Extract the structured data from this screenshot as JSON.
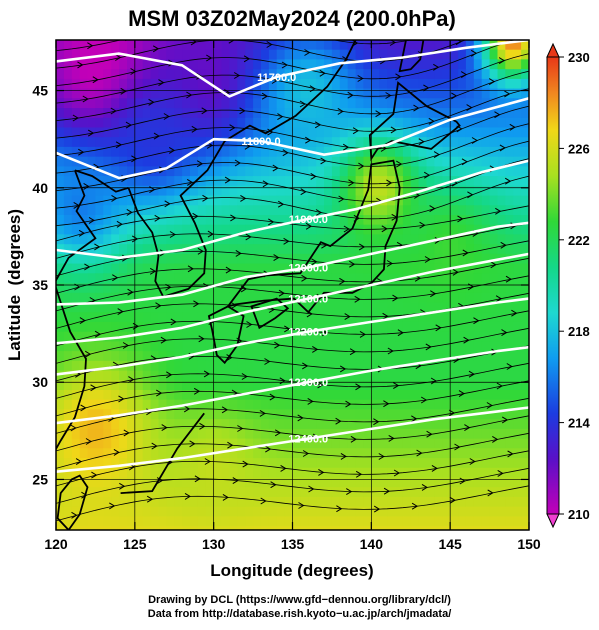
{
  "chart_data": {
    "type": "heatmap",
    "title": "MSM 03Z02May2024 (200.0hPa)",
    "xlabel": "Longitude (degrees)",
    "ylabel": "Latitude  (degrees)",
    "xlim": [
      120,
      150
    ],
    "ylim": [
      22.4,
      47.6
    ],
    "x_ticks": [
      "120",
      "125",
      "130",
      "135",
      "140",
      "145",
      "150"
    ],
    "y_ticks": [
      "25",
      "30",
      "35",
      "40",
      "45"
    ],
    "colorbar": {
      "min": 210,
      "max": 230,
      "tick_labels": [
        "230",
        "226",
        "222",
        "218",
        "214",
        "210"
      ]
    },
    "contours": [
      {
        "label": "11700.0",
        "points": [
          [
            120,
            46.5
          ],
          [
            124,
            46.9
          ],
          [
            128,
            46.3
          ],
          [
            131,
            44.7
          ],
          [
            134,
            45.7
          ],
          [
            138,
            46.4
          ],
          [
            142,
            46.7
          ],
          [
            146,
            47.2
          ],
          [
            150,
            47.6
          ]
        ]
      },
      {
        "label": "11800.0",
        "points": [
          [
            120,
            41.8
          ],
          [
            124,
            40.5
          ],
          [
            127,
            41.0
          ],
          [
            130,
            42.5
          ],
          [
            133,
            42.4
          ],
          [
            137,
            41.7
          ],
          [
            141,
            42.2
          ],
          [
            145,
            43.5
          ],
          [
            150,
            44.6
          ]
        ]
      },
      {
        "label": "11900.0",
        "points": [
          [
            120,
            36.8
          ],
          [
            124,
            36.4
          ],
          [
            128,
            36.8
          ],
          [
            132,
            37.7
          ],
          [
            136,
            38.4
          ],
          [
            139,
            38.9
          ],
          [
            143,
            39.8
          ],
          [
            147,
            40.8
          ],
          [
            150,
            41.4
          ]
        ]
      },
      {
        "label": "12000.0",
        "points": [
          [
            120,
            34.0
          ],
          [
            124,
            34.1
          ],
          [
            128,
            34.5
          ],
          [
            132,
            35.4
          ],
          [
            136,
            35.9
          ],
          [
            140,
            36.6
          ],
          [
            144,
            37.3
          ],
          [
            148,
            38.0
          ],
          [
            150,
            38.2
          ]
        ]
      },
      {
        "label": "12100.0",
        "points": [
          [
            120,
            32.0
          ],
          [
            124,
            32.3
          ],
          [
            128,
            32.8
          ],
          [
            132,
            33.6
          ],
          [
            136,
            34.3
          ],
          [
            140,
            35.0
          ],
          [
            144,
            35.7
          ],
          [
            148,
            36.3
          ],
          [
            150,
            36.6
          ]
        ]
      },
      {
        "label": "12200.0",
        "points": [
          [
            120,
            30.4
          ],
          [
            124,
            30.8
          ],
          [
            128,
            31.3
          ],
          [
            132,
            32.0
          ],
          [
            136,
            32.6
          ],
          [
            140,
            33.1
          ],
          [
            144,
            33.6
          ],
          [
            148,
            34.1
          ],
          [
            150,
            34.3
          ]
        ]
      },
      {
        "label": "12300.0",
        "points": [
          [
            120,
            27.9
          ],
          [
            124,
            28.3
          ],
          [
            128,
            28.8
          ],
          [
            132,
            29.4
          ],
          [
            136,
            30.0
          ],
          [
            140,
            30.6
          ],
          [
            144,
            31.1
          ],
          [
            148,
            31.6
          ],
          [
            150,
            31.8
          ]
        ]
      },
      {
        "label": "12400.0",
        "points": [
          [
            120,
            25.4
          ],
          [
            124,
            25.7
          ],
          [
            128,
            26.1
          ],
          [
            132,
            26.6
          ],
          [
            136,
            27.1
          ],
          [
            140,
            27.6
          ],
          [
            144,
            28.1
          ],
          [
            148,
            28.5
          ],
          [
            150,
            28.7
          ]
        ]
      }
    ],
    "temperature_features": [
      {
        "lon": 123.0,
        "lat": 46.0,
        "value": 209.5,
        "radius": 4.5
      },
      {
        "lon": 129.5,
        "lat": 45.5,
        "value": 212.0,
        "radius": 3.5
      },
      {
        "lon": 126.0,
        "lat": 42.5,
        "value": 214.0,
        "radius": 3.0
      },
      {
        "lon": 121.5,
        "lat": 39.0,
        "value": 216.0,
        "radius": 3.0
      },
      {
        "lon": 136.0,
        "lat": 45.0,
        "value": 218.0,
        "radius": 3.0
      },
      {
        "lon": 140.5,
        "lat": 40.0,
        "value": 225.5,
        "radius": 2.5
      },
      {
        "lon": 122.5,
        "lat": 27.5,
        "value": 227.5,
        "radius": 3.5
      },
      {
        "lon": 130.0,
        "lat": 25.5,
        "value": 225.5,
        "radius": 2.5
      },
      {
        "lon": 149.0,
        "lat": 47.5,
        "value": 228.5,
        "radius": 2.0
      },
      {
        "lon": 145.0,
        "lat": 37.0,
        "value": 223.0,
        "radius": 3.0
      }
    ],
    "wind_streamlines": "eastward flow, slight southward dip over Korea and northward over Japan",
    "grid": true
  },
  "footer": {
    "line1": "Drawing by DCL (https://www.gfd−dennou.org/library/dcl/)",
    "line2": "Data from http://database.rish.kyoto−u.ac.jp/arch/jmadata/"
  }
}
